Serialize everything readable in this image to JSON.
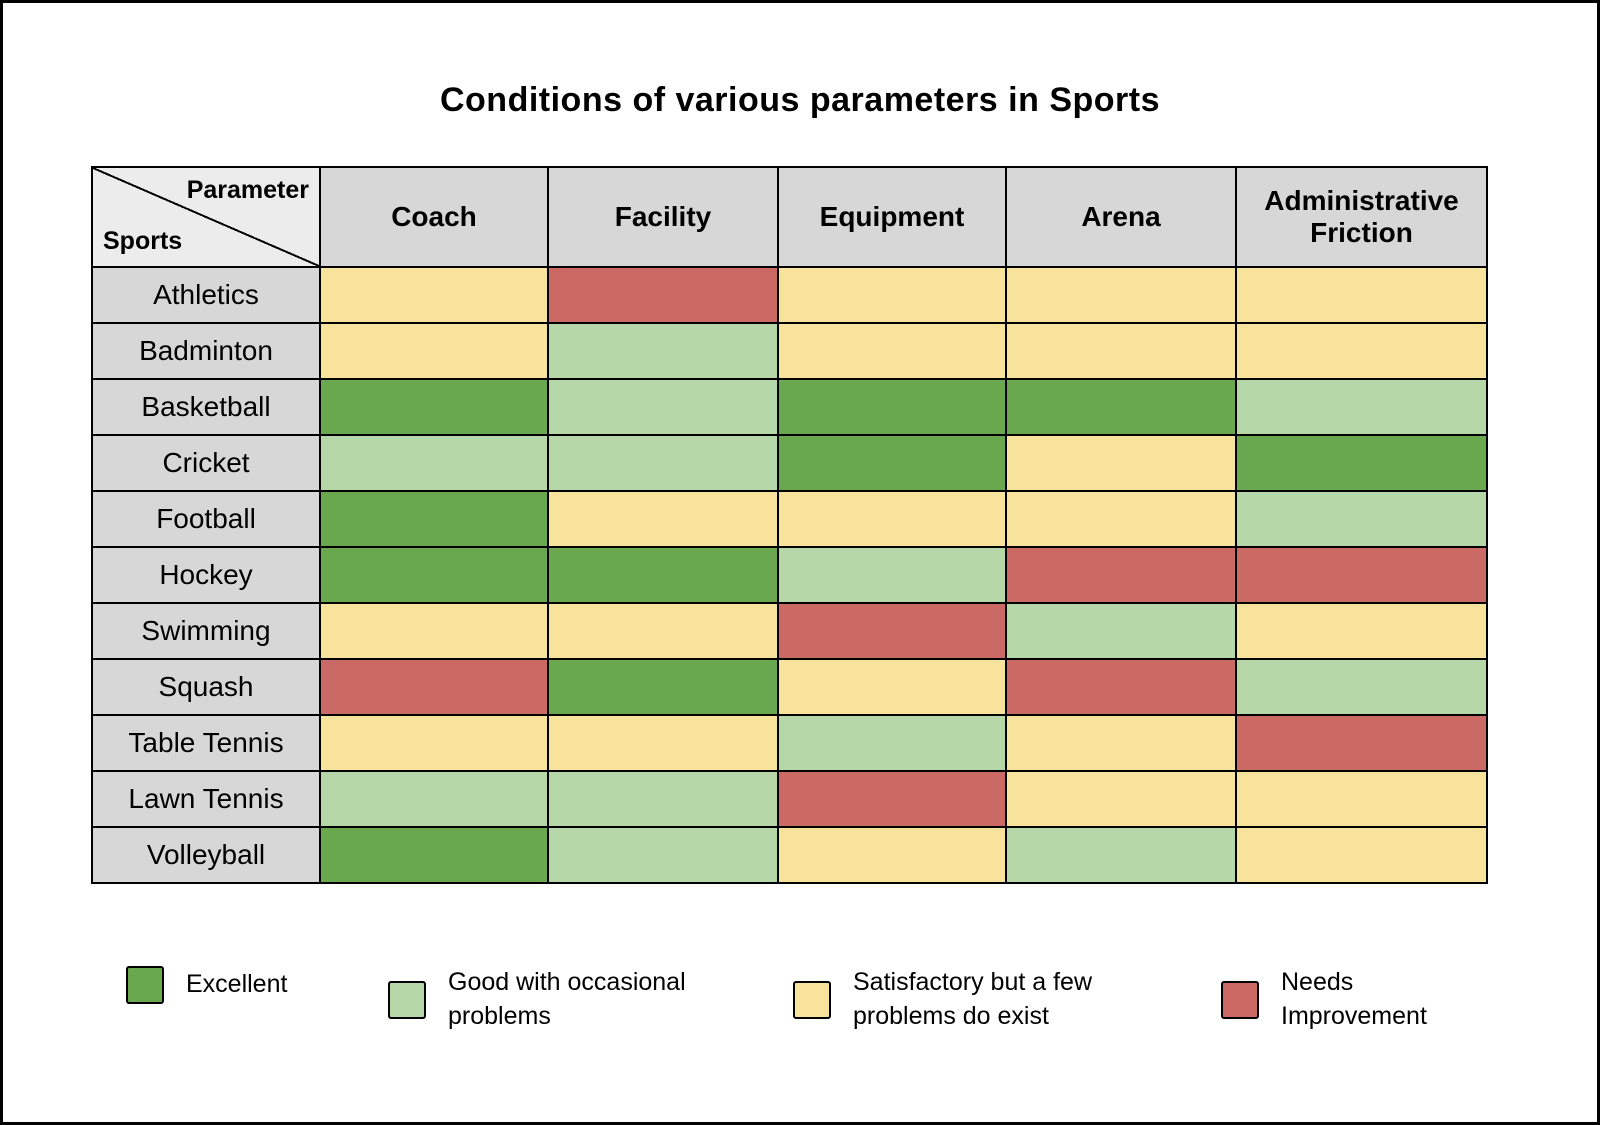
{
  "title": "Conditions of various parameters in Sports",
  "corner": {
    "top": "Parameter",
    "bottom": "Sports"
  },
  "chart_data": {
    "type": "heatmap",
    "title": "Conditions of various parameters in Sports",
    "columns": [
      "Coach",
      "Facility",
      "Equipment",
      "Arena",
      "Administrative Friction"
    ],
    "rows": [
      "Athletics",
      "Badminton",
      "Basketball",
      "Cricket",
      "Football",
      "Hockey",
      "Swimming",
      "Squash",
      "Table Tennis",
      "Lawn Tennis",
      "Volleyball"
    ],
    "values": [
      [
        "satisfactory",
        "needs_improvement",
        "satisfactory",
        "satisfactory",
        "satisfactory"
      ],
      [
        "satisfactory",
        "good",
        "satisfactory",
        "satisfactory",
        "satisfactory"
      ],
      [
        "excellent",
        "good",
        "excellent",
        "excellent",
        "good"
      ],
      [
        "good",
        "good",
        "excellent",
        "satisfactory",
        "excellent"
      ],
      [
        "excellent",
        "satisfactory",
        "satisfactory",
        "satisfactory",
        "good"
      ],
      [
        "excellent",
        "excellent",
        "good",
        "needs_improvement",
        "needs_improvement"
      ],
      [
        "satisfactory",
        "satisfactory",
        "needs_improvement",
        "good",
        "satisfactory"
      ],
      [
        "needs_improvement",
        "excellent",
        "satisfactory",
        "needs_improvement",
        "good"
      ],
      [
        "satisfactory",
        "satisfactory",
        "good",
        "satisfactory",
        "needs_improvement"
      ],
      [
        "good",
        "good",
        "needs_improvement",
        "satisfactory",
        "satisfactory"
      ],
      [
        "excellent",
        "good",
        "satisfactory",
        "good",
        "satisfactory"
      ]
    ],
    "legend": [
      {
        "key": "excellent",
        "label": "Excellent"
      },
      {
        "key": "good",
        "label": "Good with occasional problems"
      },
      {
        "key": "satisfactory",
        "label": "Satisfactory but a few problems do exist"
      },
      {
        "key": "needs_improvement",
        "label": "Needs Improvement"
      }
    ],
    "colors": {
      "excellent": "#6aa84f",
      "good": "#b6d7a8",
      "satisfactory": "#f8e39d",
      "needs_improvement": "#cb6a64"
    }
  }
}
